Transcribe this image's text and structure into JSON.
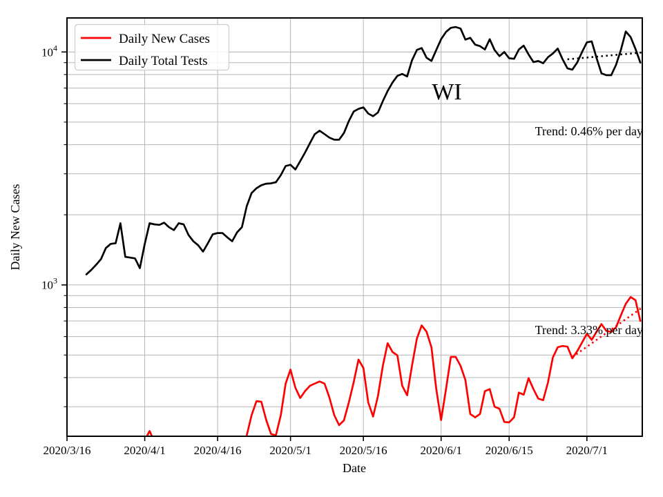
{
  "figure": {
    "background": "#ffffff",
    "legend": {
      "position": "upper-left",
      "entries": [
        {
          "label": "Daily New Cases",
          "color": "#ff0000"
        },
        {
          "label": "Daily Total Tests",
          "color": "#000000"
        }
      ]
    },
    "annotations": {
      "state_label": "WI",
      "trend_tests": "Trend: 0.46% per day",
      "trend_cases": "Trend: 3.33% per day"
    }
  },
  "chart_data": {
    "type": "line",
    "title": "",
    "xlabel": "Date",
    "ylabel": "Daily New Cases",
    "y_scale": "log",
    "ylim": [
      224,
      14000
    ],
    "grid": true,
    "grid_color": "#b5b5b5",
    "x_start_date": "2020/3/16",
    "x_end_day_offset": 118.4,
    "x_tick_labels": [
      "2020/3/16",
      "2020/4/1",
      "2020/4/16",
      "2020/5/1",
      "2020/5/16",
      "2020/6/1",
      "2020/6/15",
      "2020/7/1"
    ],
    "y_tick_labels": [
      {
        "value": 1000,
        "base": "10",
        "exponent": "3"
      },
      {
        "value": 10000,
        "base": "10",
        "exponent": "4"
      }
    ],
    "y_minor_gridlines": [
      300,
      400,
      500,
      600,
      700,
      800,
      900,
      2000,
      3000,
      4000,
      5000,
      6000,
      7000,
      8000,
      9000
    ],
    "y_major_gridlines": [
      1000,
      10000
    ],
    "series": [
      {
        "name": "Daily Total Tests",
        "color": "#000000",
        "style": "solid",
        "start_date": "2020/3/20",
        "values": [
          1110,
          1160,
          1220,
          1290,
          1440,
          1500,
          1510,
          1840,
          1320,
          1310,
          1300,
          1180,
          1500,
          1840,
          1820,
          1810,
          1850,
          1770,
          1720,
          1840,
          1820,
          1640,
          1540,
          1480,
          1390,
          1510,
          1650,
          1670,
          1670,
          1600,
          1540,
          1680,
          1770,
          2180,
          2480,
          2600,
          2680,
          2720,
          2730,
          2760,
          2960,
          3240,
          3280,
          3130,
          3400,
          3700,
          4060,
          4440,
          4590,
          4440,
          4290,
          4200,
          4200,
          4490,
          5050,
          5550,
          5700,
          5780,
          5440,
          5300,
          5500,
          6150,
          6800,
          7400,
          7900,
          8050,
          7850,
          9200,
          10200,
          10400,
          9450,
          9150,
          10200,
          11350,
          12200,
          12700,
          12800,
          12600,
          11300,
          11500,
          10750,
          10600,
          10250,
          11350,
          10200,
          9600,
          10000,
          9400,
          9350,
          10250,
          10650,
          9750,
          9050,
          9150,
          8950,
          9500,
          9850,
          10350,
          9300,
          8500,
          8400,
          9000,
          10000,
          11000,
          11100,
          9400,
          8100,
          7950,
          7950,
          8800,
          10200,
          12250,
          11600,
          10300,
          9000
        ]
      },
      {
        "name": "Daily New Cases (early)",
        "color": "#ff0000",
        "style": "solid",
        "start_date": "2020/4/1",
        "values": [
          215,
          236,
          212
        ]
      },
      {
        "name": "Daily New Cases",
        "color": "#ff0000",
        "style": "solid",
        "start_date": "2020/4/22",
        "values": [
          226,
          276,
          317,
          315,
          263,
          229,
          226,
          276,
          377,
          433,
          362,
          327,
          350,
          369,
          377,
          385,
          377,
          329,
          276,
          250,
          262,
          313,
          382,
          478,
          440,
          313,
          272,
          334,
          449,
          562,
          515,
          498,
          369,
          336,
          449,
          588,
          670,
          630,
          540,
          357,
          263,
          357,
          491,
          491,
          449,
          390,
          279,
          270,
          279,
          350,
          357,
          300,
          294,
          258,
          257,
          270,
          345,
          338,
          398,
          357,
          325,
          320,
          382,
          488,
          540,
          547,
          543,
          484,
          519,
          566,
          617,
          581,
          630,
          679,
          635,
          628,
          658,
          740,
          830,
          887,
          860,
          700
        ]
      }
    ],
    "trend_lines": [
      {
        "name": "tests-trend",
        "label": "Trend: 0.46% per day",
        "color": "#000000",
        "style": "dotted",
        "start_day": 103,
        "end_day": 118.4,
        "start_value": 9300,
        "end_value": 9950
      },
      {
        "name": "cases-trend",
        "label": "Trend: 3.33% per day",
        "color": "#ff0000",
        "style": "dotted",
        "start_day": 104,
        "end_day": 118.4,
        "start_value": 490,
        "end_value": 800
      }
    ]
  }
}
